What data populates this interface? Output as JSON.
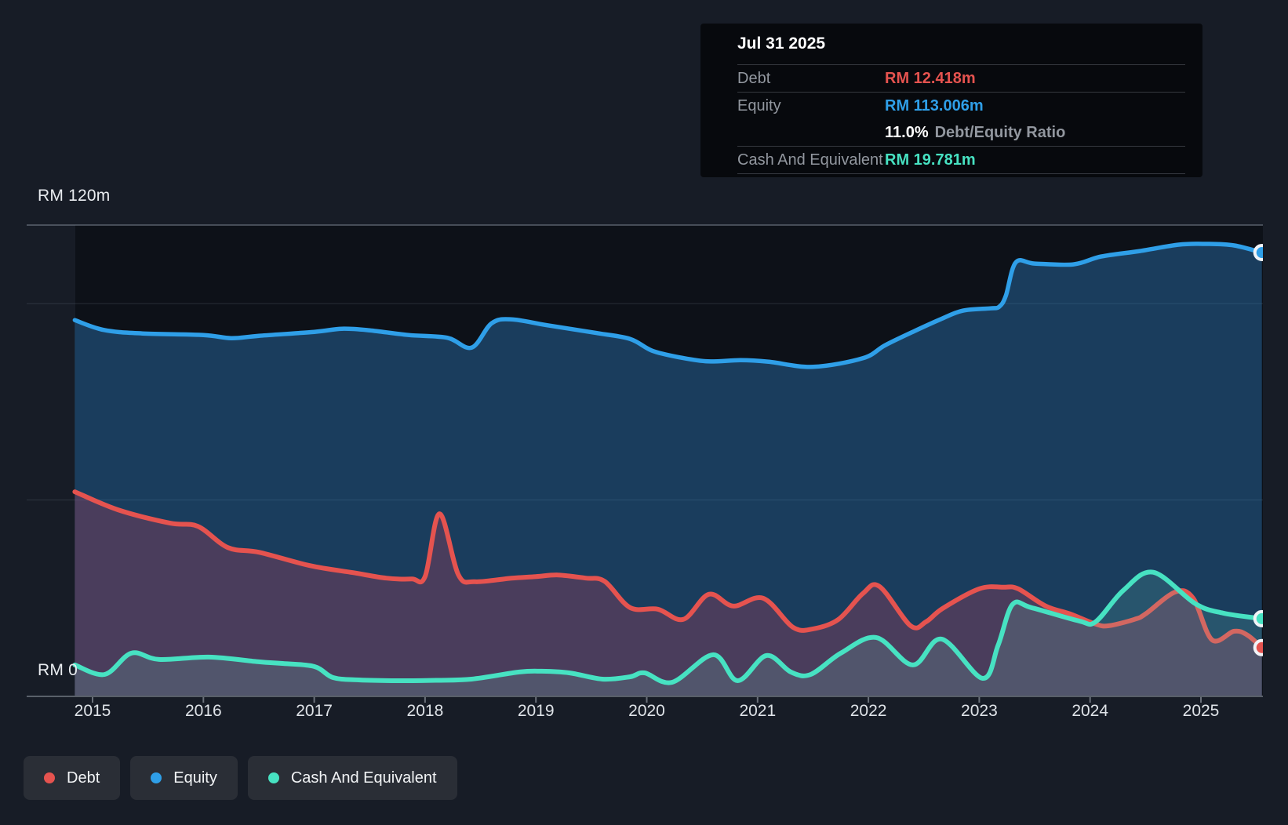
{
  "page": {
    "background": "#171c26"
  },
  "tooltip": {
    "title": "Jul 31 2025",
    "debt_label": "Debt",
    "debt_value": "RM 12.418m",
    "equity_label": "Equity",
    "equity_value": "RM 113.006m",
    "ratio_value": "11.0%",
    "ratio_suffix": "Debt/Equity Ratio",
    "cash_label": "Cash And Equivalent",
    "cash_value": "RM 19.781m"
  },
  "axis": {
    "y_max_label": "RM 120m",
    "y_zero_label": "RM 0",
    "year_labels": [
      "2015",
      "2016",
      "2017",
      "2018",
      "2019",
      "2020",
      "2021",
      "2022",
      "2023",
      "2024",
      "2025"
    ]
  },
  "legend": {
    "items": [
      {
        "label": "Debt",
        "color": "#e5534f"
      },
      {
        "label": "Equity",
        "color": "#2f9fe8"
      },
      {
        "label": "Cash And Equivalent",
        "color": "#47e2c2"
      }
    ]
  },
  "chart_data": {
    "type": "area",
    "title": "Debt, Equity and Cash history (RM millions)",
    "x_axis": {
      "unit": "year",
      "range": [
        2014.84,
        2025.58
      ],
      "ticks": [
        2015,
        2016,
        2017,
        2018,
        2019,
        2020,
        2021,
        2022,
        2023,
        2024,
        2025
      ]
    },
    "y_axis": {
      "unit": "RM millions",
      "max": 120,
      "min": 0,
      "gridlines": [
        120,
        100,
        50,
        0
      ]
    },
    "latest": {
      "date": "Jul 31 2025",
      "debt": 12.418,
      "equity": 113.006,
      "cash": 19.781,
      "debt_equity_ratio_pct": 11.0
    },
    "series": [
      {
        "name": "Equity",
        "color": "#2f9fe8",
        "fill": "rgba(45,125,190,0.42)",
        "points": [
          [
            2014.84,
            95.8
          ],
          [
            2015.1,
            93.3
          ],
          [
            2015.45,
            92.4
          ],
          [
            2016.0,
            92.0
          ],
          [
            2016.25,
            91.2
          ],
          [
            2016.5,
            91.8
          ],
          [
            2017.0,
            92.8
          ],
          [
            2017.25,
            93.6
          ],
          [
            2017.5,
            93.2
          ],
          [
            2017.85,
            92.0
          ],
          [
            2018.2,
            91.3
          ],
          [
            2018.42,
            88.8
          ],
          [
            2018.6,
            95.0
          ],
          [
            2018.78,
            96.0
          ],
          [
            2019.1,
            94.5
          ],
          [
            2019.55,
            92.5
          ],
          [
            2019.85,
            91.0
          ],
          [
            2020.05,
            88.0
          ],
          [
            2020.3,
            86.3
          ],
          [
            2020.55,
            85.3
          ],
          [
            2020.85,
            85.6
          ],
          [
            2021.1,
            85.2
          ],
          [
            2021.5,
            83.9
          ],
          [
            2021.95,
            86.1
          ],
          [
            2022.15,
            89.4
          ],
          [
            2022.4,
            92.8
          ],
          [
            2022.65,
            96.0
          ],
          [
            2022.85,
            98.2
          ],
          [
            2023.1,
            98.8
          ],
          [
            2023.18,
            99.2
          ],
          [
            2023.24,
            102.0
          ],
          [
            2023.33,
            110.5
          ],
          [
            2023.5,
            110.2
          ],
          [
            2023.85,
            110.0
          ],
          [
            2024.1,
            112.0
          ],
          [
            2024.45,
            113.4
          ],
          [
            2024.8,
            115.0
          ],
          [
            2025.05,
            115.2
          ],
          [
            2025.3,
            114.8
          ],
          [
            2025.55,
            113.006
          ]
        ]
      },
      {
        "name": "Debt",
        "color": "#e5534f",
        "fill": "rgba(200,60,90,0.28)",
        "points": [
          [
            2014.84,
            52.1
          ],
          [
            2015.23,
            47.5
          ],
          [
            2015.7,
            44.1
          ],
          [
            2015.95,
            43.3
          ],
          [
            2016.22,
            37.9
          ],
          [
            2016.5,
            36.7
          ],
          [
            2016.96,
            33.3
          ],
          [
            2017.35,
            31.5
          ],
          [
            2017.65,
            30.1
          ],
          [
            2017.88,
            29.9
          ],
          [
            2018.0,
            30.5
          ],
          [
            2018.13,
            46.5
          ],
          [
            2018.3,
            31.0
          ],
          [
            2018.45,
            29.2
          ],
          [
            2018.78,
            30.1
          ],
          [
            2019.0,
            30.5
          ],
          [
            2019.2,
            30.9
          ],
          [
            2019.45,
            30.1
          ],
          [
            2019.62,
            29.3
          ],
          [
            2019.85,
            22.6
          ],
          [
            2020.1,
            22.2
          ],
          [
            2020.33,
            19.6
          ],
          [
            2020.56,
            26.0
          ],
          [
            2020.78,
            23.0
          ],
          [
            2021.05,
            25.0
          ],
          [
            2021.32,
            17.6
          ],
          [
            2021.5,
            17.2
          ],
          [
            2021.73,
            19.6
          ],
          [
            2021.95,
            26.2
          ],
          [
            2022.1,
            28.0
          ],
          [
            2022.38,
            18.0
          ],
          [
            2022.52,
            19.0
          ],
          [
            2022.67,
            22.4
          ],
          [
            2023.0,
            27.4
          ],
          [
            2023.22,
            27.8
          ],
          [
            2023.35,
            27.4
          ],
          [
            2023.6,
            23.0
          ],
          [
            2023.82,
            21.0
          ],
          [
            2024.05,
            18.4
          ],
          [
            2024.17,
            18.0
          ],
          [
            2024.4,
            19.6
          ],
          [
            2024.5,
            21.0
          ],
          [
            2024.77,
            26.6
          ],
          [
            2024.93,
            25.0
          ],
          [
            2025.1,
            14.4
          ],
          [
            2025.3,
            16.6
          ],
          [
            2025.42,
            15.6
          ],
          [
            2025.55,
            12.418
          ]
        ]
      },
      {
        "name": "Cash And Equivalent",
        "color": "#47e2c2",
        "fill": "rgba(120,210,195,0.16)",
        "points": [
          [
            2014.84,
            8.0
          ],
          [
            2015.11,
            5.6
          ],
          [
            2015.35,
            11.0
          ],
          [
            2015.6,
            9.4
          ],
          [
            2016.05,
            10.0
          ],
          [
            2016.5,
            8.8
          ],
          [
            2016.7,
            8.4
          ],
          [
            2017.0,
            7.6
          ],
          [
            2017.17,
            4.8
          ],
          [
            2017.4,
            4.2
          ],
          [
            2017.75,
            4.0
          ],
          [
            2018.1,
            4.1
          ],
          [
            2018.42,
            4.4
          ],
          [
            2018.85,
            6.2
          ],
          [
            2019.05,
            6.4
          ],
          [
            2019.3,
            6.0
          ],
          [
            2019.6,
            4.4
          ],
          [
            2019.85,
            5.0
          ],
          [
            2019.98,
            6.0
          ],
          [
            2020.23,
            3.6
          ],
          [
            2020.6,
            10.6
          ],
          [
            2020.82,
            4.0
          ],
          [
            2021.08,
            10.4
          ],
          [
            2021.3,
            6.2
          ],
          [
            2021.48,
            5.6
          ],
          [
            2021.75,
            11.0
          ],
          [
            2022.07,
            15.0
          ],
          [
            2022.4,
            8.0
          ],
          [
            2022.66,
            14.6
          ],
          [
            2023.03,
            4.6
          ],
          [
            2023.17,
            13.0
          ],
          [
            2023.3,
            23.4
          ],
          [
            2023.47,
            22.6
          ],
          [
            2023.9,
            19.2
          ],
          [
            2024.05,
            19.0
          ],
          [
            2024.3,
            27.0
          ],
          [
            2024.57,
            31.6
          ],
          [
            2024.95,
            23.6
          ],
          [
            2025.2,
            21.2
          ],
          [
            2025.55,
            19.781
          ]
        ]
      }
    ],
    "legend_position": "bottom-left",
    "grid": true
  }
}
